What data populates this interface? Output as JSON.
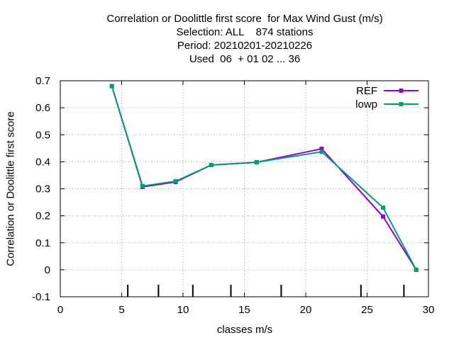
{
  "chart_data": {
    "type": "line",
    "title_lines": [
      "Correlation or Doolittle first score  for Max Wind Gust (m/s)",
      "Selection: ALL    874 stations",
      "Period: 20210201-20210226",
      "Used  06  + 01 02 ... 36"
    ],
    "xlabel": "classes m/s",
    "ylabel": "Correlation or Doolittle first score",
    "xlim": [
      0,
      30
    ],
    "ylim": [
      -0.1,
      0.7
    ],
    "xticks": [
      0,
      5,
      10,
      15,
      20,
      25,
      30
    ],
    "yticks": [
      -0.1,
      0,
      0.1,
      0.2,
      0.3,
      0.4,
      0.5,
      0.6,
      0.7
    ],
    "grid": true,
    "legend_position": "top-right",
    "class_boundaries": [
      5.5,
      8,
      10.8,
      13.9,
      18,
      24.5,
      28
    ],
    "series": [
      {
        "name": "REF",
        "color": "#9400d3",
        "marker": "square",
        "x": [
          4.2,
          6.7,
          9.4,
          12.3,
          16.0,
          21.3,
          26.3,
          29.0
        ],
        "y": [
          0.68,
          0.307,
          0.325,
          0.388,
          0.398,
          0.448,
          0.197,
          0.0
        ]
      },
      {
        "name": "lowp",
        "color": "#009e73",
        "marker": "square",
        "x": [
          4.2,
          6.7,
          9.4,
          12.3,
          16.0,
          21.3,
          26.3,
          29.0
        ],
        "y": [
          0.68,
          0.31,
          0.328,
          0.388,
          0.398,
          0.437,
          0.23,
          0.0
        ]
      }
    ]
  }
}
